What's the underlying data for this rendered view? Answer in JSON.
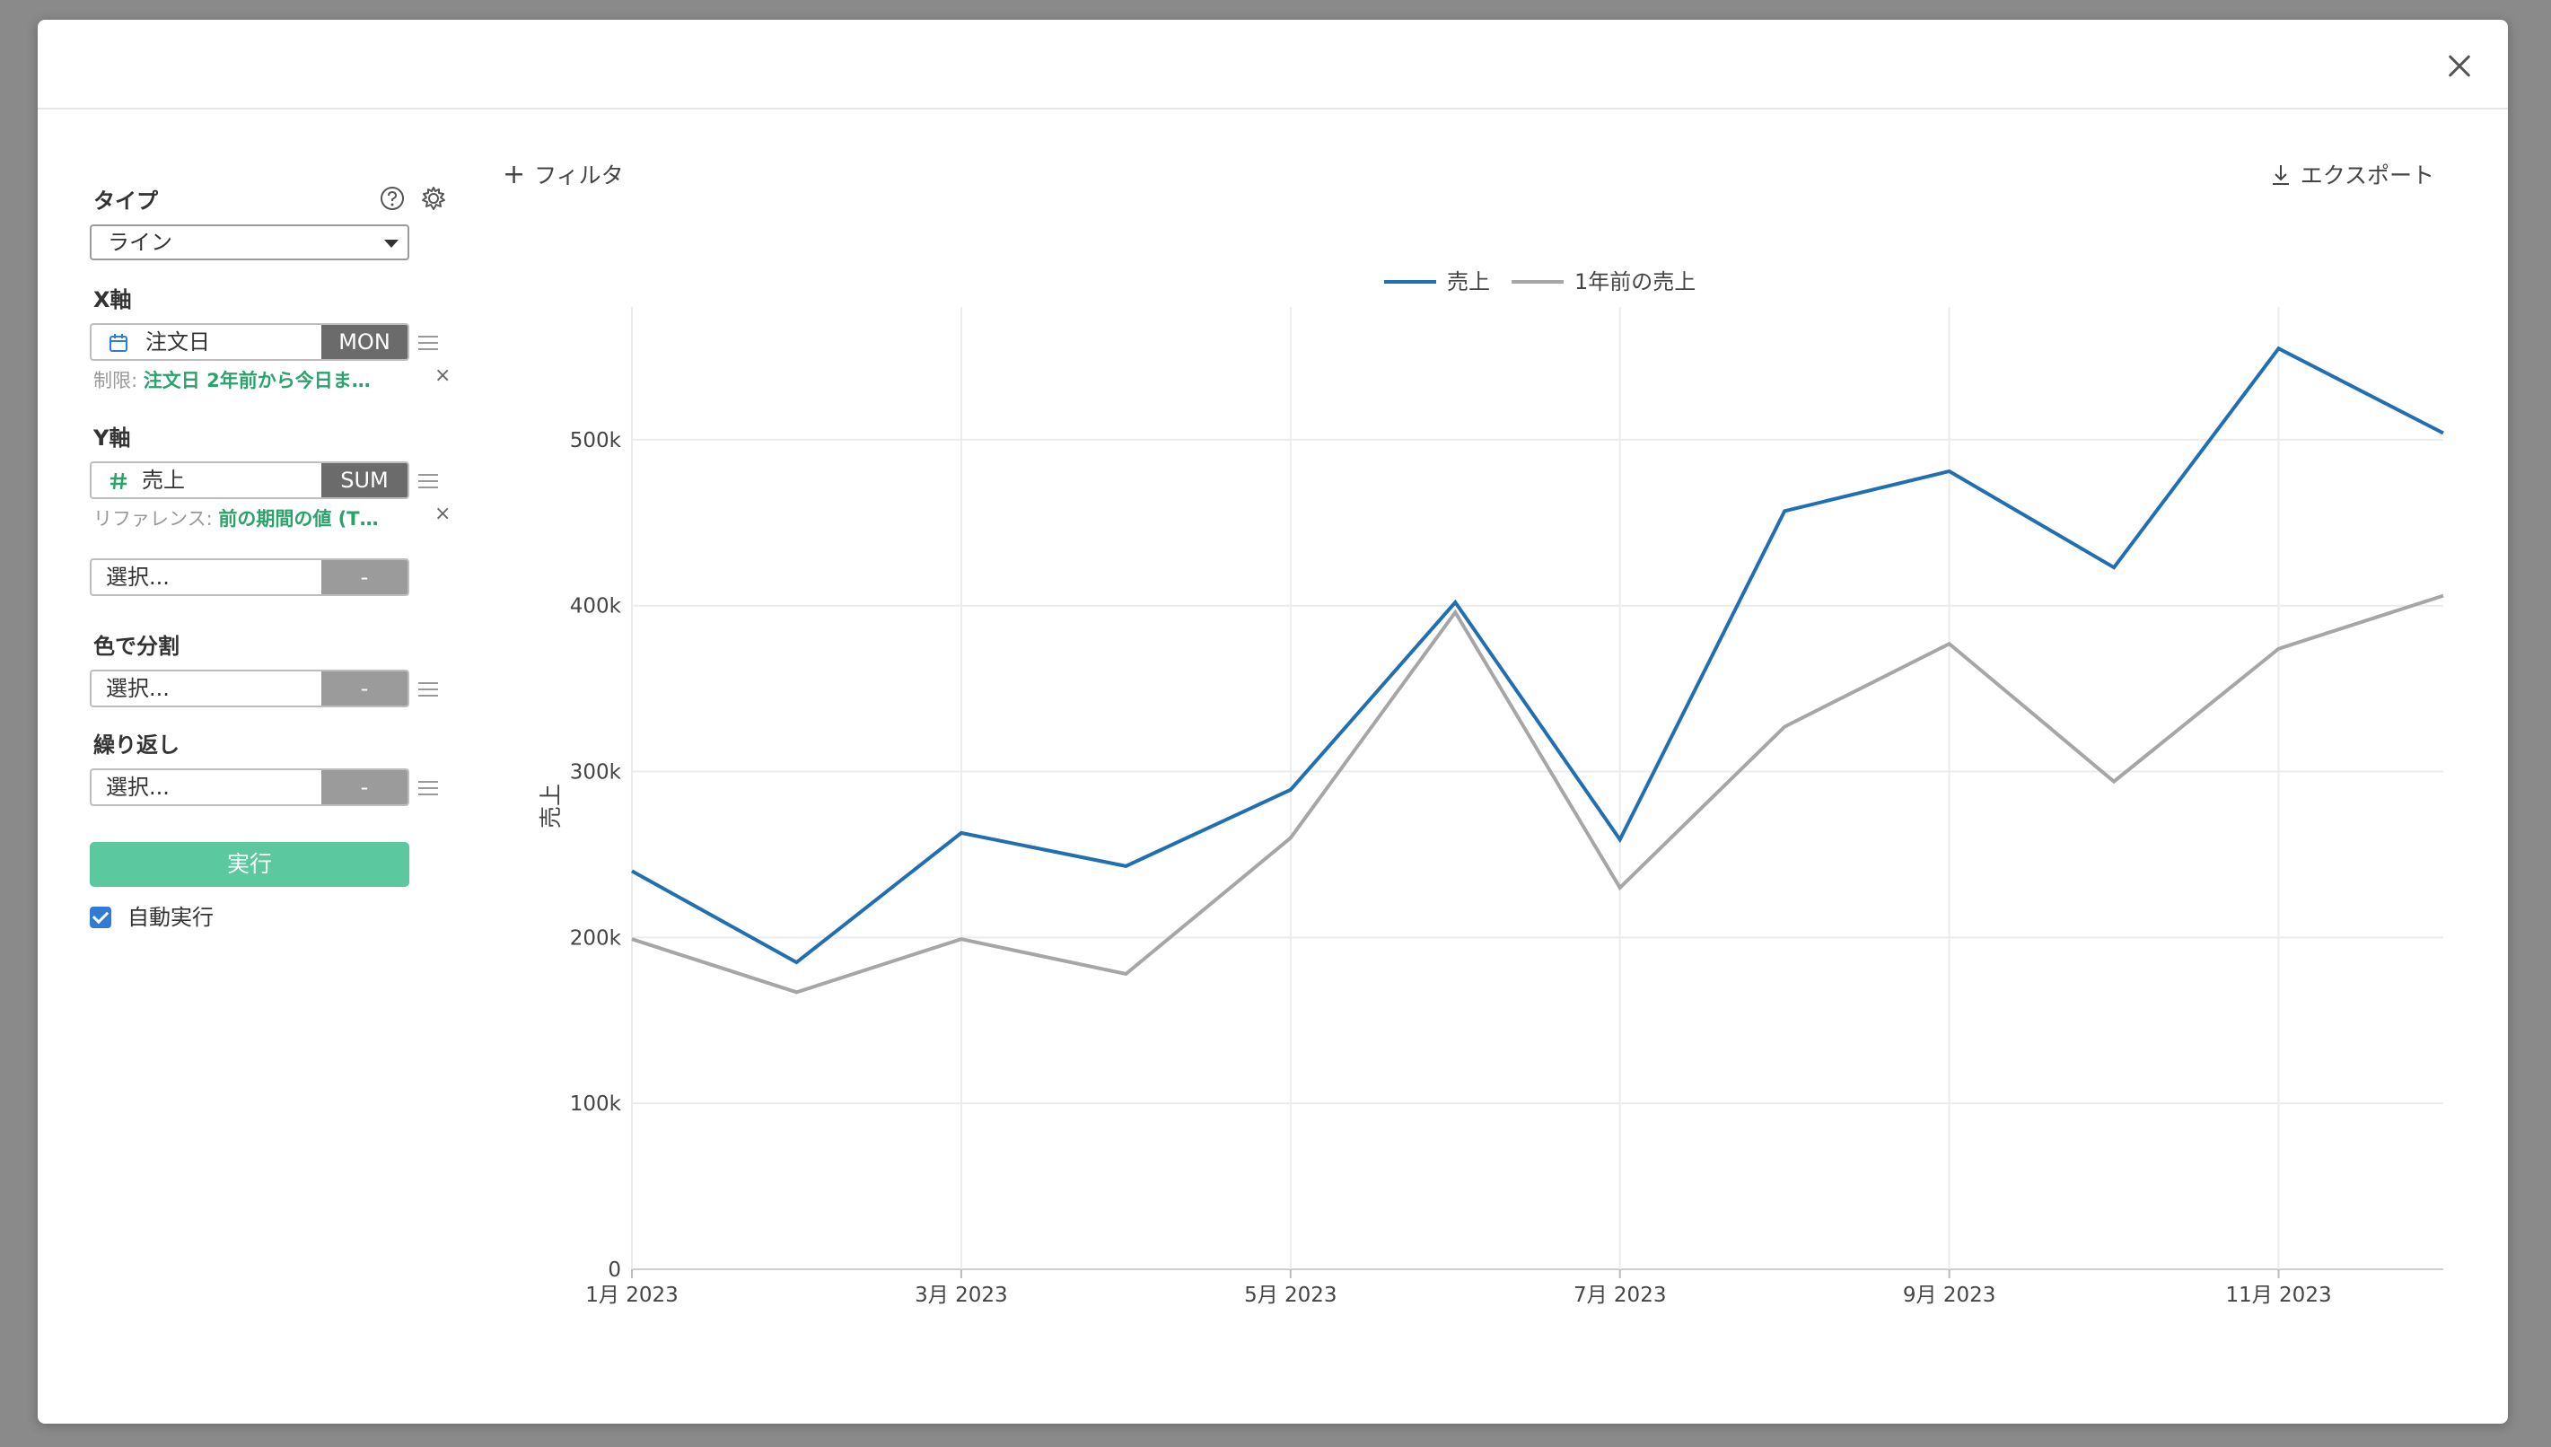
{
  "panel": {
    "type_label": "タイプ",
    "type_value": "ライン",
    "x_axis_label": "X軸",
    "x_field": "注文日",
    "x_agg": "MON",
    "x_note_prefix": "制限: ",
    "x_note_value": "注文日 2年前から今日ま…",
    "y_axis_label": "Y軸",
    "y_field": "売上",
    "y_agg": "SUM",
    "y_note_prefix": "リファレンス: ",
    "y_note_value": "前の期間の値 (T…",
    "y2_placeholder": "選択...",
    "y2_agg": "-",
    "color_label": "色で分割",
    "color_placeholder": "選択...",
    "color_agg": "-",
    "repeat_label": "繰り返し",
    "repeat_placeholder": "選択...",
    "repeat_agg": "-",
    "run_label": "実行",
    "auto_run_label": "自動実行",
    "close_x": "×"
  },
  "toolbar": {
    "filter_label": "フィルタ",
    "export_label": "エクスポート"
  },
  "chart_data": {
    "type": "line",
    "x": [
      "2023-01",
      "2023-02",
      "2023-03",
      "2023-04",
      "2023-05",
      "2023-06",
      "2023-07",
      "2023-08",
      "2023-09",
      "2023-10",
      "2023-11",
      "2023-12"
    ],
    "x_tick_labels": [
      "1月 2023",
      "3月 2023",
      "5月 2023",
      "7月 2023",
      "9月 2023",
      "11月 2023"
    ],
    "series": [
      {
        "name": "売上",
        "color": "#1f6fb2",
        "values": [
          240000,
          185000,
          263000,
          243000,
          289000,
          402000,
          259000,
          457000,
          481000,
          423000,
          555000,
          504000
        ]
      },
      {
        "name": "1年前の売上",
        "color": "#a6a6a6",
        "values": [
          199000,
          167000,
          199000,
          178000,
          260000,
          396000,
          230000,
          327000,
          377000,
          294000,
          374000,
          406000
        ]
      }
    ],
    "ylabel": "売上",
    "xlabel": "",
    "ylim": [
      0,
      580000
    ],
    "y_ticks": [
      "0",
      "100k",
      "200k",
      "300k",
      "400k",
      "500k"
    ],
    "y_tick_values": [
      0,
      100000,
      200000,
      300000,
      400000,
      500000
    ],
    "grid": true,
    "legend_position": "top-center"
  }
}
